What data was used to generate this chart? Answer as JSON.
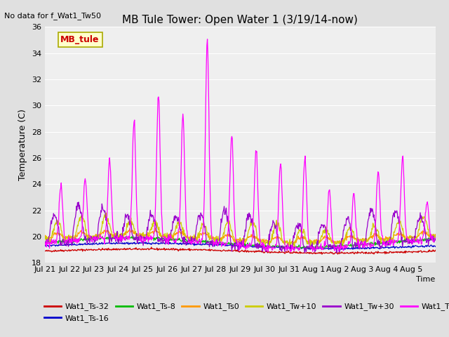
{
  "title": "MB Tule Tower: Open Water 1 (3/19/14-now)",
  "no_data_text": "No data for f_Wat1_Tw50",
  "ylabel": "Temperature (C)",
  "xlabel": "Time",
  "box_label": "MB_tule",
  "ylim": [
    18,
    36
  ],
  "yticks": [
    18,
    20,
    22,
    24,
    26,
    28,
    30,
    32,
    34,
    36
  ],
  "xtick_labels": [
    "Jul 21",
    "Jul 22",
    "Jul 23",
    "Jul 24",
    "Jul 25",
    "Jul 26",
    "Jul 27",
    "Jul 28",
    "Jul 29",
    "Jul 30",
    "Jul 31",
    "Aug 1",
    "Aug 2",
    "Aug 3",
    "Aug 4",
    "Aug 5"
  ],
  "series_colors": {
    "Wat1_Ts-32": "#cc0000",
    "Wat1_Ts-16": "#0000cc",
    "Wat1_Ts-8": "#00bb00",
    "Wat1_Ts0": "#ff9900",
    "Wat1_Tw+10": "#cccc00",
    "Wat1_Tw+30": "#9900cc",
    "Wat1_Tw100": "#ff00ff"
  },
  "background_color": "#e0e0e0",
  "plot_bg_color": "#efefef",
  "figsize": [
    6.4,
    4.8
  ],
  "dpi": 100,
  "peak_amps": [
    4.5,
    4.8,
    6.0,
    9.0,
    11.0,
    9.5,
    15.5,
    8.5,
    7.5,
    6.5,
    7.0,
    4.5,
    4.0,
    5.5,
    6.5,
    3.0
  ]
}
